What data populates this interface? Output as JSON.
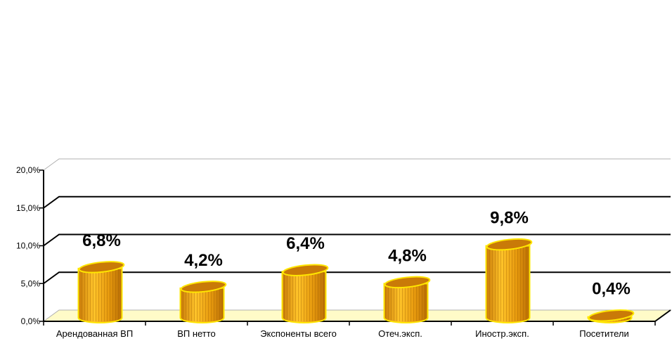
{
  "chart_data": {
    "type": "bar",
    "categories": [
      "Арендованная ВП",
      "ВП нетто",
      "Экспоненты всего",
      "Отеч.эксп.",
      "Иностр.эксп.",
      "Посетители"
    ],
    "values": [
      6.8,
      4.2,
      6.4,
      4.8,
      9.8,
      0.4
    ],
    "data_labels": [
      "6,8%",
      "4,2%",
      "6,4%",
      "4,8%",
      "9,8%",
      "0,4%"
    ],
    "y_ticks": [
      "0,0%",
      "5,0%",
      "10,0%",
      "15,0%",
      "20,0%"
    ],
    "y_tick_values": [
      0,
      5,
      10,
      15,
      20
    ],
    "ylim": [
      0,
      20
    ],
    "grid": true,
    "three_d": true,
    "title": "",
    "xlabel": "",
    "ylabel": ""
  },
  "colors": {
    "bar_fill": "#E79A0E",
    "bar_highlight": "#FFC42A",
    "bar_shadow": "#B86D05",
    "bar_outline": "#FFE600",
    "bar_top": "#C97A08",
    "floor": "#FFFBC8",
    "grid": "#000000"
  }
}
